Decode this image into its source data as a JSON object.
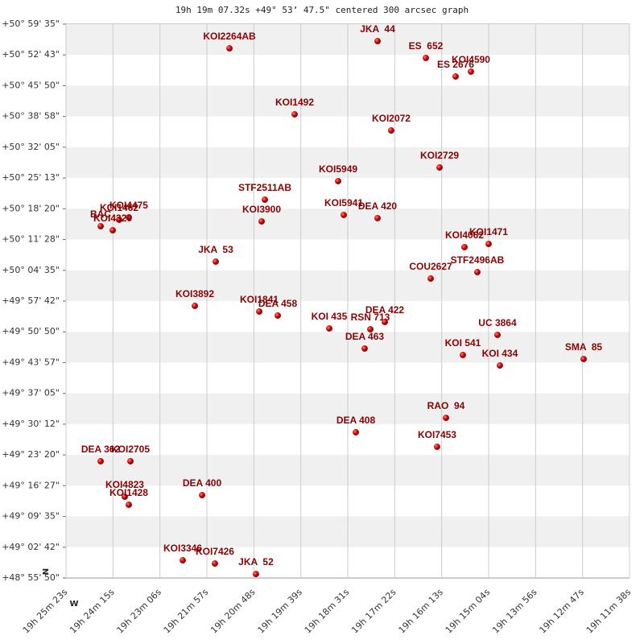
{
  "chart_data": {
    "type": "scatter",
    "title": "19h 19m 07.32s +49° 53’ 47.5\" centered 300 arcsec graph",
    "north_label": "N",
    "west_label": "W",
    "color": "#cc0000",
    "label_color": "#8b0000",
    "grid": true,
    "stripes": true,
    "xlim": [
      69923,
      69098
    ],
    "ylim": [
      48.930556,
      50.993056
    ],
    "xticks": [
      {
        "value": 69923,
        "label": "19h 25m 23s"
      },
      {
        "value": 69854.25,
        "label": "19h 24m 15s"
      },
      {
        "value": 69785.5,
        "label": "19h 23m 06s"
      },
      {
        "value": 69716.75,
        "label": "19h 21m 57s"
      },
      {
        "value": 69648,
        "label": "19h 20m 48s"
      },
      {
        "value": 69579.25,
        "label": "19h 19m 39s"
      },
      {
        "value": 69510.5,
        "label": "19h 18m 31s"
      },
      {
        "value": 69441.75,
        "label": "19h 17m 22s"
      },
      {
        "value": 69373,
        "label": "19h 16m 13s"
      },
      {
        "value": 69304.25,
        "label": "19h 15m 04s"
      },
      {
        "value": 69235.5,
        "label": "19h 13m 56s"
      },
      {
        "value": 69166.75,
        "label": "19h 12m 47s"
      },
      {
        "value": 69098,
        "label": "19h 11m 38s"
      }
    ],
    "yticks": [
      {
        "value": 48.930556,
        "label": "+48° 55' 50\""
      },
      {
        "value": 49.045139,
        "label": "+49° 02' 42\""
      },
      {
        "value": 49.159722,
        "label": "+49° 09' 35\""
      },
      {
        "value": 49.274306,
        "label": "+49° 16' 27\""
      },
      {
        "value": 49.388889,
        "label": "+49° 23' 20\""
      },
      {
        "value": 49.503472,
        "label": "+49° 30' 12\""
      },
      {
        "value": 49.618056,
        "label": "+49° 37' 05\""
      },
      {
        "value": 49.732639,
        "label": "+49° 43' 57\""
      },
      {
        "value": 49.847222,
        "label": "+49° 50' 50\""
      },
      {
        "value": 49.961806,
        "label": "+49° 57' 42\""
      },
      {
        "value": 50.076389,
        "label": "+50° 04' 35\""
      },
      {
        "value": 50.190972,
        "label": "+50° 11' 28\""
      },
      {
        "value": 50.305556,
        "label": "+50° 18' 20\""
      },
      {
        "value": 50.420139,
        "label": "+50° 25' 13\""
      },
      {
        "value": 50.534722,
        "label": "+50° 32' 05\""
      },
      {
        "value": 50.649306,
        "label": "+50° 38' 58\""
      },
      {
        "value": 50.763889,
        "label": "+50° 45' 50\""
      },
      {
        "value": 50.878472,
        "label": "+50° 52' 43\""
      },
      {
        "value": 50.993056,
        "label": "+50° 59' 35\""
      }
    ],
    "labels": [
      "KOI2264AB",
      "JKA  44",
      "ES  652",
      "KOI4590",
      "ES 2676",
      "KOI1492",
      "KOI2072",
      "KOI2729",
      "KOI5949",
      "STF2511AB",
      "KOI3900",
      "KOI5941",
      "DEA 420",
      "KOI4475",
      "KOI1462",
      "BAC",
      "KOI4320",
      "KOI4062",
      "KOI1471",
      "JKA  53",
      "COU2627",
      "STF2496AB",
      "KOI3892",
      "KOI1841",
      "DEA 458",
      "KOI 435",
      "RSN 713",
      "DEA 422",
      "DEA 463",
      "UC 3864",
      "KOI 541",
      "KOI 434",
      "SMA  85",
      "RAO  94",
      "DEA 408",
      "KOI7453",
      "DEA 362",
      "KOI2705",
      "KOI4823",
      "KOI1428",
      "DEA 400",
      "KOI3346",
      "KOI7426",
      "JKA  52"
    ],
    "x": [
      69683.7,
      69466.9,
      69396.2,
      69330.2,
      69352.6,
      69588.3,
      69446.9,
      69376.1,
      69524.6,
      69631.9,
      69636.6,
      69516.4,
      69466.9,
      69831.1,
      69845.2,
      69872.3,
      69854.6,
      69339.6,
      69304.3,
      69703.8,
      69389.1,
      69320.8,
      69734.4,
      69640.1,
      69613.0,
      69537.6,
      69477.5,
      69456.3,
      69485.8,
      69291.3,
      69342.0,
      69287.8,
      69165.2,
      69366.7,
      69498.7,
      69379.7,
      69872.3,
      69828.7,
      69837.0,
      69831.1,
      69723.8,
      69752.1,
      69705.0,
      69644.9
    ],
    "y": [
      50.9031,
      50.9301,
      50.8672,
      50.8162,
      50.7982,
      50.6573,
      50.5973,
      50.4594,
      50.4085,
      50.3395,
      50.2586,
      50.2826,
      50.2706,
      50.2736,
      50.2646,
      50.2406,
      50.2256,
      50.1627,
      50.1747,
      50.1087,
      50.0457,
      50.0697,
      49.9439,
      49.9229,
      49.9079,
      49.8599,
      49.8569,
      49.8839,
      49.785,
      49.8359,
      49.761,
      49.722,
      49.746,
      49.5271,
      49.4732,
      49.4192,
      49.3653,
      49.3653,
      49.2333,
      49.2034,
      49.2393,
      48.9965,
      48.9845,
      48.9455
    ]
  }
}
